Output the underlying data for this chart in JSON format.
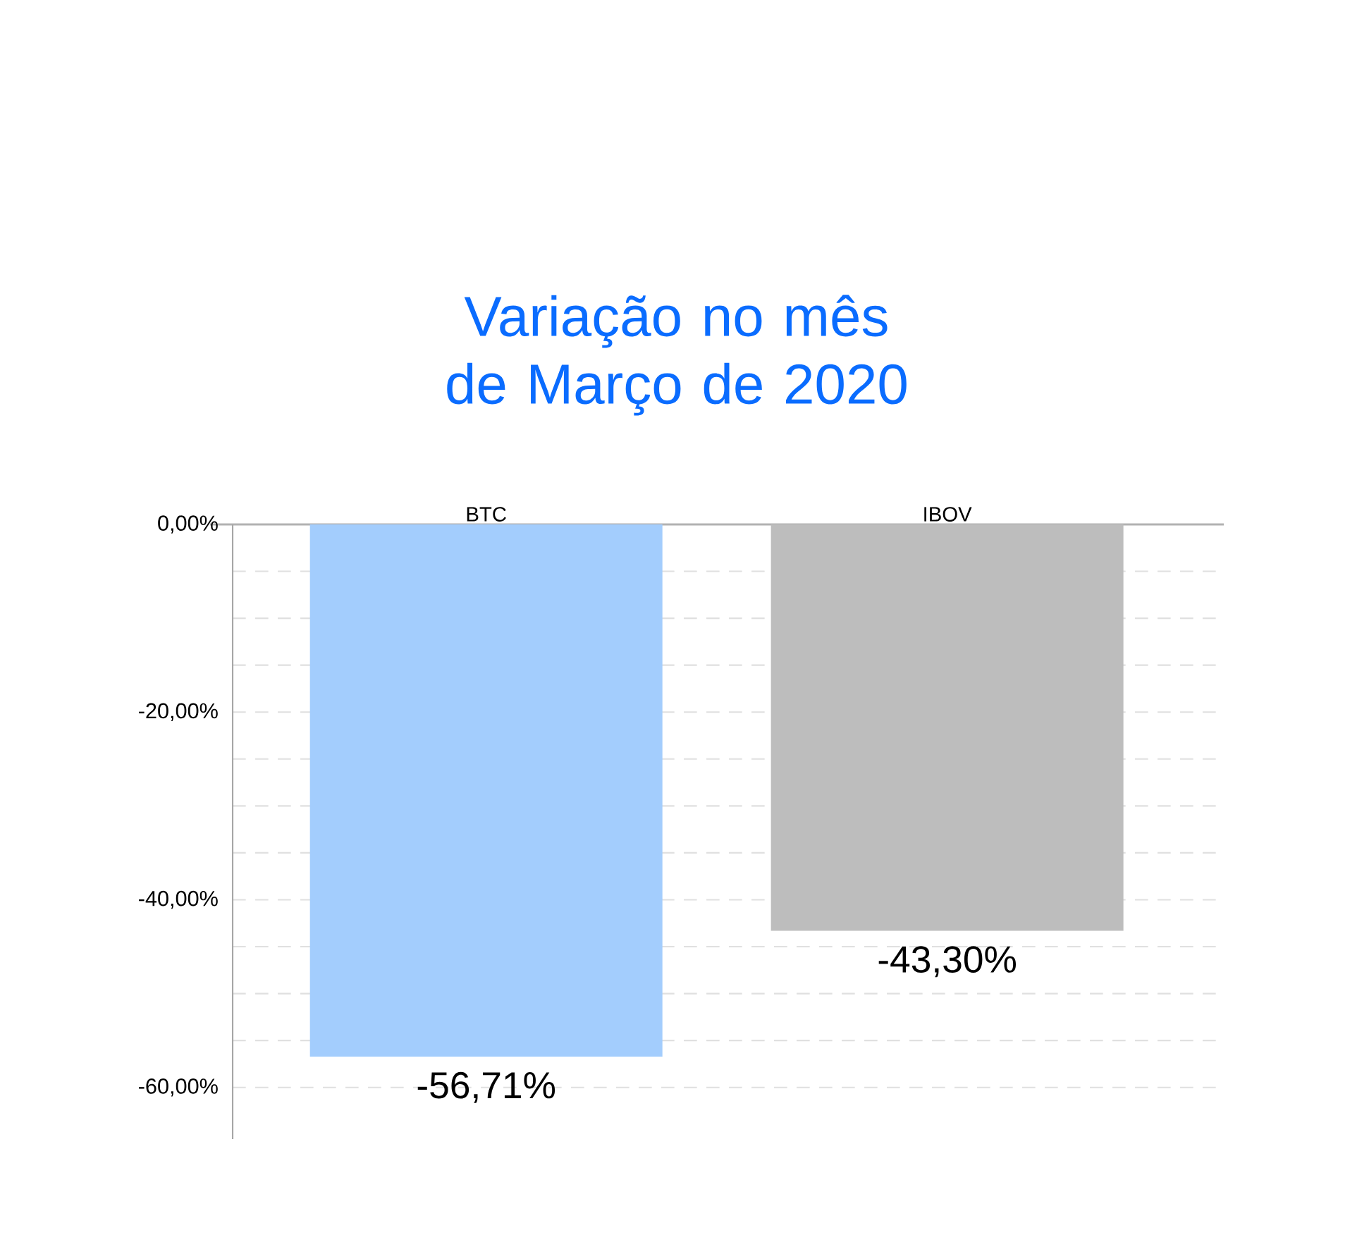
{
  "chart_data": {
    "type": "bar",
    "title": "Variação no mês de Março de 2020",
    "categories": [
      "BTC",
      "IBOV"
    ],
    "values": [
      -56.71,
      -43.3
    ],
    "colors": [
      "#a3cdfd",
      "#bdbdbd"
    ],
    "value_labels": [
      "-56,71%",
      "-43,30%"
    ],
    "ylim": [
      -65.5,
      0
    ],
    "yticks": [
      {
        "value": 0,
        "label": "0,00%"
      },
      {
        "value": -5,
        "label": null
      },
      {
        "value": -10,
        "label": null
      },
      {
        "value": -15,
        "label": null
      },
      {
        "value": -20,
        "label": "-20,00%"
      },
      {
        "value": -25,
        "label": null
      },
      {
        "value": -30,
        "label": null
      },
      {
        "value": -35,
        "label": null
      },
      {
        "value": -40,
        "label": "-40,00%"
      },
      {
        "value": -45,
        "label": null
      },
      {
        "value": -50,
        "label": null
      },
      {
        "value": -55,
        "label": null
      },
      {
        "value": -60,
        "label": "-60,00%"
      }
    ],
    "grid": "y"
  }
}
